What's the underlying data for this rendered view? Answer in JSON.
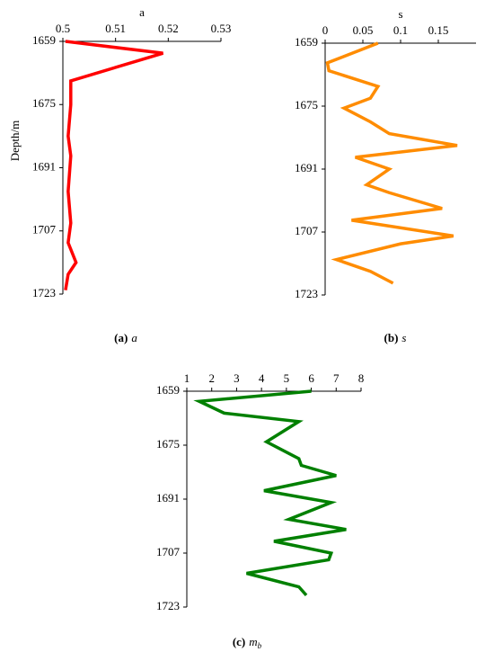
{
  "chart_data": [
    {
      "type": "line",
      "x_label": "a",
      "y_label": "Depth/m",
      "caption": {
        "label": "(a)",
        "symbol": "a"
      },
      "xlim": [
        0.5,
        0.53
      ],
      "xticks": [
        0.5,
        0.51,
        0.52,
        0.53
      ],
      "ylim": [
        1659,
        1723
      ],
      "yticks": [
        1659,
        1675,
        1691,
        1707,
        1723
      ],
      "y_inverted": true,
      "y": [
        1659,
        1662,
        1669,
        1675,
        1683,
        1688,
        1697,
        1705,
        1710,
        1715,
        1718,
        1722
      ],
      "series": [
        {
          "color": "#ff0000",
          "values": [
            0.5005,
            0.519,
            0.5015,
            0.5015,
            0.501,
            0.5015,
            0.501,
            0.5015,
            0.501,
            0.5025,
            0.501,
            0.5005
          ]
        }
      ]
    },
    {
      "type": "line",
      "x_label": "s",
      "caption": {
        "label": "(b)",
        "symbol": "s"
      },
      "xlim": [
        0,
        0.2
      ],
      "xticks": [
        0,
        0.05,
        0.1,
        0.15
      ],
      "ylim": [
        1659,
        1723
      ],
      "yticks": [
        1659,
        1675,
        1691,
        1707,
        1723
      ],
      "y_inverted": true,
      "y": [
        1659,
        1664,
        1666,
        1670,
        1673,
        1675.5,
        1679,
        1682,
        1685,
        1688,
        1691,
        1695,
        1697,
        1701,
        1704,
        1708,
        1710,
        1714,
        1717,
        1720
      ],
      "series": [
        {
          "color": "#ff8c00",
          "values": [
            0.07,
            0.003,
            0.005,
            0.07,
            0.06,
            0.025,
            0.06,
            0.085,
            0.175,
            0.04,
            0.085,
            0.055,
            0.085,
            0.155,
            0.035,
            0.17,
            0.1,
            0.015,
            0.06,
            0.09
          ]
        }
      ]
    },
    {
      "type": "line",
      "caption": {
        "label": "(c)",
        "symbol": "m",
        "subscript": "b"
      },
      "xlim": [
        1,
        8
      ],
      "xticks": [
        1,
        2,
        3,
        4,
        5,
        6,
        7,
        8
      ],
      "ylim": [
        1659,
        1723
      ],
      "yticks": [
        1659,
        1675,
        1691,
        1707,
        1723
      ],
      "y_inverted": true,
      "y": [
        1659,
        1662,
        1665.5,
        1668,
        1674,
        1679,
        1681,
        1684,
        1688.5,
        1692,
        1697,
        1700,
        1703.5,
        1707,
        1709,
        1713,
        1717,
        1719.5
      ],
      "series": [
        {
          "color": "#008000",
          "values": [
            6,
            1.5,
            2.5,
            5.5,
            4.2,
            5.5,
            5.6,
            7,
            4.1,
            6.8,
            5.1,
            7.4,
            4.5,
            6.8,
            6.7,
            3.4,
            5.5,
            5.8
          ]
        }
      ]
    }
  ]
}
